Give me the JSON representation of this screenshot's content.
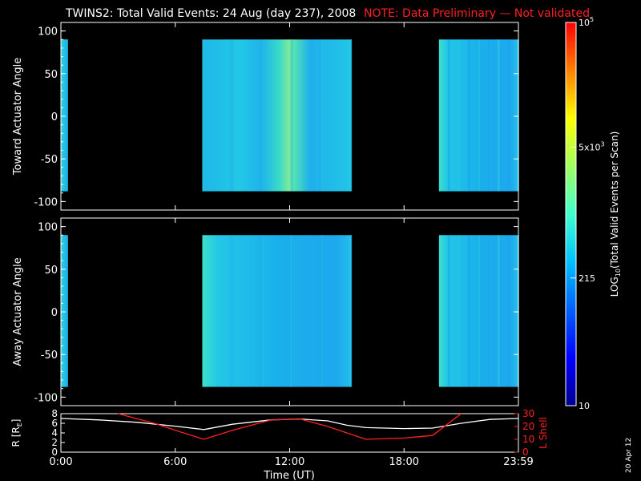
{
  "header": {
    "title": "TWINS2: Total Valid Events: 24 Aug (day 237), 2008",
    "note": "NOTE: Data Preliminary — Not validated",
    "title_color": "#ffffff",
    "note_color": "#ff2020"
  },
  "footer": {
    "date_stamp": "20 Apr 12"
  },
  "colorbar": {
    "label": "LOG10(Total Valid Events per Scan)",
    "label_main": "LOG",
    "label_sub": "10",
    "label_rest": "(Total Valid Events per Scan)",
    "ticks": [
      {
        "value": 100000,
        "base": "10",
        "exp": "5"
      },
      {
        "value": 5000,
        "base": "5x10",
        "exp": "3"
      },
      {
        "value": 215,
        "base": "215",
        "exp": ""
      },
      {
        "value": 10,
        "base": "10",
        "exp": ""
      }
    ],
    "min": 10,
    "max": 100000,
    "scale": "log",
    "colors": [
      "#00008f",
      "#0000ff",
      "#0060ff",
      "#00c0ff",
      "#40ffd0",
      "#a0ff60",
      "#ffff00",
      "#ff8000",
      "#ff0000"
    ]
  },
  "chart_data": [
    {
      "type": "heatmap",
      "ylabel": "Toward Actuator Angle",
      "ylim": [
        -110,
        110
      ],
      "yticks": [
        100,
        50,
        0,
        -50,
        -100
      ],
      "xlim_hours": [
        0,
        24
      ],
      "data_blocks": [
        {
          "t_start": "0:00",
          "t_end": "0:22",
          "angle_min": -88,
          "angle_max": 90,
          "level": "cyan"
        },
        {
          "t_start": "7:25",
          "t_end": "15:15",
          "angle_min": -88,
          "angle_max": 90,
          "level": "cyan-to-green"
        },
        {
          "t_start": "19:50",
          "t_end": "24:00",
          "angle_min": -88,
          "angle_max": 90,
          "level": "cyan"
        }
      ]
    },
    {
      "type": "heatmap",
      "ylabel": "Away Actuator Angle",
      "ylim": [
        -110,
        110
      ],
      "yticks": [
        100,
        50,
        0,
        -50,
        -100
      ],
      "xlim_hours": [
        0,
        24
      ],
      "data_blocks": [
        {
          "t_start": "0:00",
          "t_end": "0:22",
          "angle_min": -88,
          "angle_max": 90,
          "level": "cyan"
        },
        {
          "t_start": "7:25",
          "t_end": "15:15",
          "angle_min": -88,
          "angle_max": 90,
          "level": "cyan-to-green"
        },
        {
          "t_start": "19:50",
          "t_end": "24:00",
          "angle_min": -88,
          "angle_max": 90,
          "level": "cyan"
        }
      ]
    },
    {
      "type": "line",
      "xlabel": "Time (UT)",
      "xticks": [
        "0:00",
        "6:00",
        "12:00",
        "18:00",
        "23:59"
      ],
      "xtick_hours": [
        0,
        6,
        12,
        18,
        24
      ],
      "ylabel": "R [RE]",
      "ylabel_main": "R [R",
      "ylabel_sub": "E",
      "ylabel_end": "]",
      "ylim": [
        0,
        8
      ],
      "yticks": [
        "8",
        "6",
        "4",
        "2",
        "0"
      ],
      "y2label": "L Shell",
      "y2lim": [
        0,
        30
      ],
      "y2ticks": [
        "30",
        "20",
        "10",
        "0"
      ],
      "series": [
        {
          "name": "R [RE]",
          "color": "#ffffff",
          "axis": "left",
          "x": [
            0,
            2,
            4,
            6,
            7.5,
            9,
            11,
            12.5,
            14,
            15,
            16,
            18,
            19.5,
            21,
            22.5,
            24
          ],
          "y": [
            7.0,
            6.7,
            6.2,
            5.4,
            4.7,
            5.8,
            6.7,
            6.9,
            6.5,
            5.6,
            5.1,
            4.9,
            5.0,
            6.0,
            6.8,
            7.0
          ]
        },
        {
          "name": "L Shell",
          "color": "#ff2020",
          "axis": "right",
          "x": [
            3,
            5,
            6,
            7.5,
            9,
            11,
            12.5,
            14,
            15,
            16,
            18,
            19.5,
            21
          ],
          "y": [
            30,
            22,
            17,
            10,
            17,
            25,
            26,
            20,
            15,
            10,
            11,
            13,
            30
          ]
        }
      ]
    }
  ]
}
